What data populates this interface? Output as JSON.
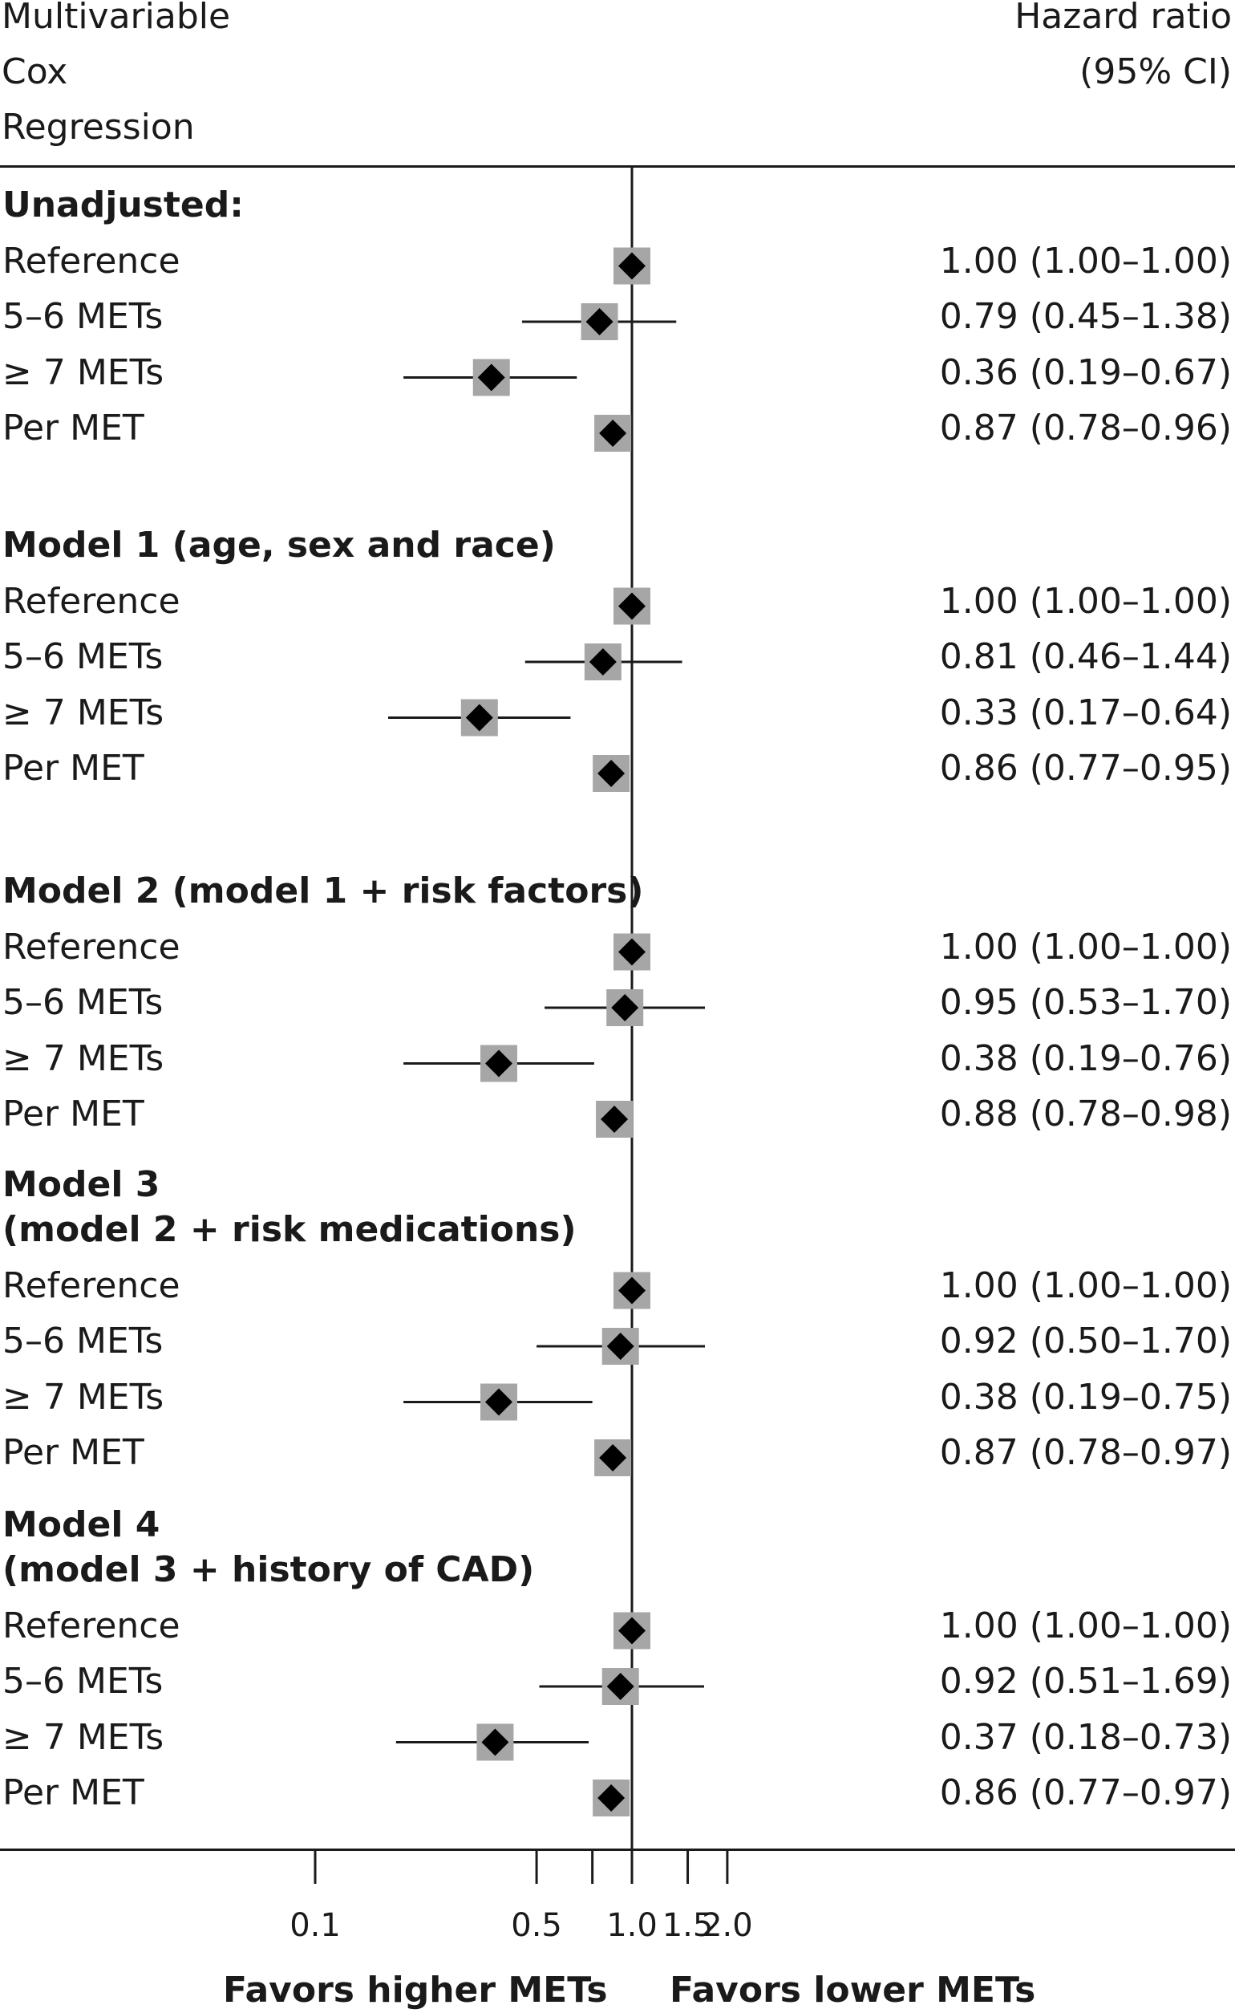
{
  "header": {
    "left_lines": [
      "Multivariable",
      "Cox",
      "Regression"
    ],
    "right_lines": [
      "Hazard ratio",
      "(95% CI)"
    ]
  },
  "chart_data": {
    "type": "forest",
    "xscale": "log",
    "reference_line": 1.0,
    "xticks": [
      0.1,
      0.5,
      0.75,
      1.0,
      1.5,
      2.0
    ],
    "xtick_labels": [
      "0.1",
      "0.5",
      "",
      "1.0",
      "1.5",
      "2.0"
    ],
    "xlabel_left": "Favors higher METs",
    "xlabel_right": "Favors lower METs",
    "groups": [
      {
        "title_lines": [
          "Unadjusted:"
        ],
        "rows": [
          {
            "label": "Reference",
            "hr": 1.0,
            "lo": 1.0,
            "hi": 1.0,
            "text": "1.00 (1.00–1.00)"
          },
          {
            "label": "5–6 METs",
            "hr": 0.79,
            "lo": 0.45,
            "hi": 1.38,
            "text": "0.79 (0.45–1.38)"
          },
          {
            "label": "≥ 7 METs",
            "hr": 0.36,
            "lo": 0.19,
            "hi": 0.67,
            "text": "0.36 (0.19–0.67)"
          },
          {
            "label": "Per MET",
            "hr": 0.87,
            "lo": 0.78,
            "hi": 0.96,
            "text": "0.87 (0.78–0.96)"
          }
        ]
      },
      {
        "title_lines": [
          "Model 1 (age, sex and race)"
        ],
        "rows": [
          {
            "label": "Reference",
            "hr": 1.0,
            "lo": 1.0,
            "hi": 1.0,
            "text": "1.00 (1.00–1.00)"
          },
          {
            "label": "5–6 METs",
            "hr": 0.81,
            "lo": 0.46,
            "hi": 1.44,
            "text": "0.81 (0.46–1.44)"
          },
          {
            "label": "≥ 7 METs",
            "hr": 0.33,
            "lo": 0.17,
            "hi": 0.64,
            "text": "0.33 (0.17–0.64)"
          },
          {
            "label": "Per MET",
            "hr": 0.86,
            "lo": 0.77,
            "hi": 0.95,
            "text": "0.86 (0.77–0.95)"
          }
        ]
      },
      {
        "title_lines": [
          "Model 2 (model 1 + risk factors)"
        ],
        "rows": [
          {
            "label": "Reference",
            "hr": 1.0,
            "lo": 1.0,
            "hi": 1.0,
            "text": "1.00 (1.00–1.00)"
          },
          {
            "label": "5–6 METs",
            "hr": 0.95,
            "lo": 0.53,
            "hi": 1.7,
            "text": "0.95 (0.53–1.70)"
          },
          {
            "label": "≥ 7 METs",
            "hr": 0.38,
            "lo": 0.19,
            "hi": 0.76,
            "text": "0.38 (0.19–0.76)"
          },
          {
            "label": "Per MET",
            "hr": 0.88,
            "lo": 0.78,
            "hi": 0.98,
            "text": "0.88 (0.78–0.98)"
          }
        ]
      },
      {
        "title_lines": [
          "Model 3",
          "(model 2 + risk medications)"
        ],
        "rows": [
          {
            "label": "Reference",
            "hr": 1.0,
            "lo": 1.0,
            "hi": 1.0,
            "text": "1.00 (1.00–1.00)"
          },
          {
            "label": "5–6 METs",
            "hr": 0.92,
            "lo": 0.5,
            "hi": 1.7,
            "text": "0.92 (0.50–1.70)"
          },
          {
            "label": "≥ 7 METs",
            "hr": 0.38,
            "lo": 0.19,
            "hi": 0.75,
            "text": "0.38 (0.19–0.75)"
          },
          {
            "label": "Per MET",
            "hr": 0.87,
            "lo": 0.78,
            "hi": 0.97,
            "text": "0.87 (0.78–0.97)"
          }
        ]
      },
      {
        "title_lines": [
          "Model 4",
          "(model 3 + history of CAD)"
        ],
        "rows": [
          {
            "label": "Reference",
            "hr": 1.0,
            "lo": 1.0,
            "hi": 1.0,
            "text": "1.00 (1.00–1.00)"
          },
          {
            "label": "5–6 METs",
            "hr": 0.92,
            "lo": 0.51,
            "hi": 1.69,
            "text": "0.92 (0.51–1.69)"
          },
          {
            "label": "≥ 7 METs",
            "hr": 0.37,
            "lo": 0.18,
            "hi": 0.73,
            "text": "0.37 (0.18–0.73)"
          },
          {
            "label": "Per MET",
            "hr": 0.86,
            "lo": 0.77,
            "hi": 0.97,
            "text": "0.86 (0.77–0.97)"
          }
        ]
      }
    ],
    "colors": {
      "point": "#000000",
      "box": "#a6a6a6",
      "line": "#1a1a1a"
    }
  }
}
